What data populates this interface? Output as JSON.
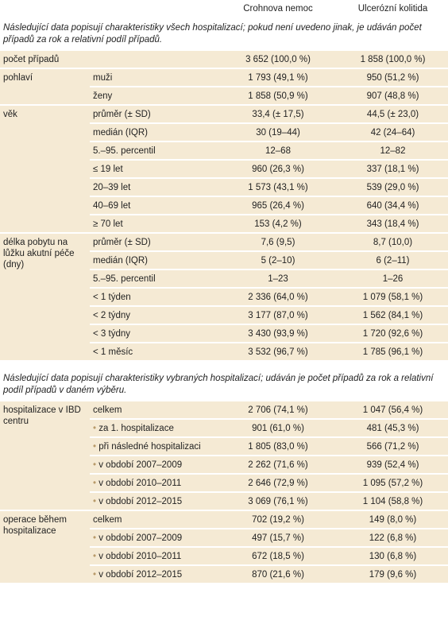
{
  "header": {
    "crohn": "Crohnova nemoc",
    "uc": "Ulcerózní kolitida"
  },
  "sections": [
    {
      "note": "Následující data popisují charakteristiky všech hospitalizací; pokud není uvedeno jinak, je udáván počet případů za rok a relativní podíl případů.",
      "groups": [
        {
          "label": "počet případů",
          "rows": [
            {
              "values": [
                "3 652 (100,0 %)",
                "1 858 (100,0 %)"
              ]
            }
          ]
        },
        {
          "label": "pohlaví",
          "rows": [
            {
              "label": "muži",
              "values": [
                "1 793 (49,1 %)",
                "950 (51,2 %)"
              ]
            },
            {
              "label": "ženy",
              "values": [
                "1 858 (50,9 %)",
                "907 (48,8 %)"
              ]
            }
          ]
        },
        {
          "label": "věk",
          "rows": [
            {
              "label": "průměr (± SD)",
              "values": [
                "33,4 (± 17,5)",
                "44,5 (± 23,0)"
              ]
            },
            {
              "label": "medián (IQR)",
              "values": [
                "30 (19–44)",
                "42 (24–64)"
              ]
            },
            {
              "label": "5.–95. percentil",
              "values": [
                "12–68",
                "12–82"
              ]
            },
            {
              "label": "≤ 19 let",
              "values": [
                "960 (26,3 %)",
                "337 (18,1 %)"
              ]
            },
            {
              "label": "20–39 let",
              "values": [
                "1 573 (43,1 %)",
                "539 (29,0 %)"
              ]
            },
            {
              "label": "40–69 let",
              "values": [
                "965 (26,4 %)",
                "640 (34,4 %)"
              ]
            },
            {
              "label": "≥ 70 let",
              "values": [
                "153 (4,2 %)",
                "343 (18,4 %)"
              ]
            }
          ]
        },
        {
          "label": "délka pobytu na lůžku akutní péče (dny)",
          "rows": [
            {
              "label": "průměr (± SD)",
              "values": [
                "7,6 (9,5)",
                "8,7 (10,0)"
              ]
            },
            {
              "label": "medián (IQR)",
              "values": [
                "5 (2–10)",
                "6 (2–11)"
              ]
            },
            {
              "label": "5.–95. percentil",
              "values": [
                "1–23",
                "1–26"
              ]
            },
            {
              "label": "< 1 týden",
              "values": [
                "2 336 (64,0 %)",
                "1 079 (58,1 %)"
              ]
            },
            {
              "label": "< 2 týdny",
              "values": [
                "3 177 (87,0 %)",
                "1 562 (84,1 %)"
              ]
            },
            {
              "label": "< 3 týdny",
              "values": [
                "3 430 (93,9 %)",
                "1 720 (92,6 %)"
              ]
            },
            {
              "label": "< 1 měsíc",
              "values": [
                "3 532 (96,7 %)",
                "1 785 (96,1 %)"
              ]
            }
          ]
        }
      ]
    },
    {
      "note": "Následující data popisují charakteristiky vybraných hospitalizací; udáván je počet případů za rok a relativní podíl případů v daném výběru.",
      "groups": [
        {
          "label": "hospitalizace v IBD centru",
          "rows": [
            {
              "label": "celkem",
              "values": [
                "2 706 (74,1 %)",
                "1 047 (56,4 %)"
              ]
            },
            {
              "label": "za 1. hospitalizace",
              "bullet": true,
              "values": [
                "901 (61,0 %)",
                "481 (45,3 %)"
              ]
            },
            {
              "label": "při následné hospitalizaci",
              "bullet": true,
              "values": [
                "1 805 (83,0 %)",
                "566 (71,2 %)"
              ]
            },
            {
              "label": "v období 2007–2009",
              "bullet": true,
              "values": [
                "2 262 (71,6 %)",
                "939 (52,4 %)"
              ]
            },
            {
              "label": "v období 2010–2011",
              "bullet": true,
              "values": [
                "2 646 (72,9 %)",
                "1 095 (57,2 %)"
              ]
            },
            {
              "label": "v období 2012–2015",
              "bullet": true,
              "values": [
                "3 069 (76,1 %)",
                "1 104 (58,8 %)"
              ]
            }
          ]
        },
        {
          "label": "operace během hospitalizace",
          "rows": [
            {
              "label": "celkem",
              "values": [
                "702 (19,2 %)",
                "149 (8,0 %)"
              ]
            },
            {
              "label": "v období 2007–2009",
              "bullet": true,
              "values": [
                "497 (15,7 %)",
                "122 (6,8 %)"
              ]
            },
            {
              "label": "v období 2010–2011",
              "bullet": true,
              "values": [
                "672 (18,5 %)",
                "130 (6,8 %)"
              ]
            },
            {
              "label": "v období 2012–2015",
              "bullet": true,
              "values": [
                "870 (21,6 %)",
                "179 (9,6 %)"
              ]
            }
          ]
        }
      ]
    }
  ]
}
